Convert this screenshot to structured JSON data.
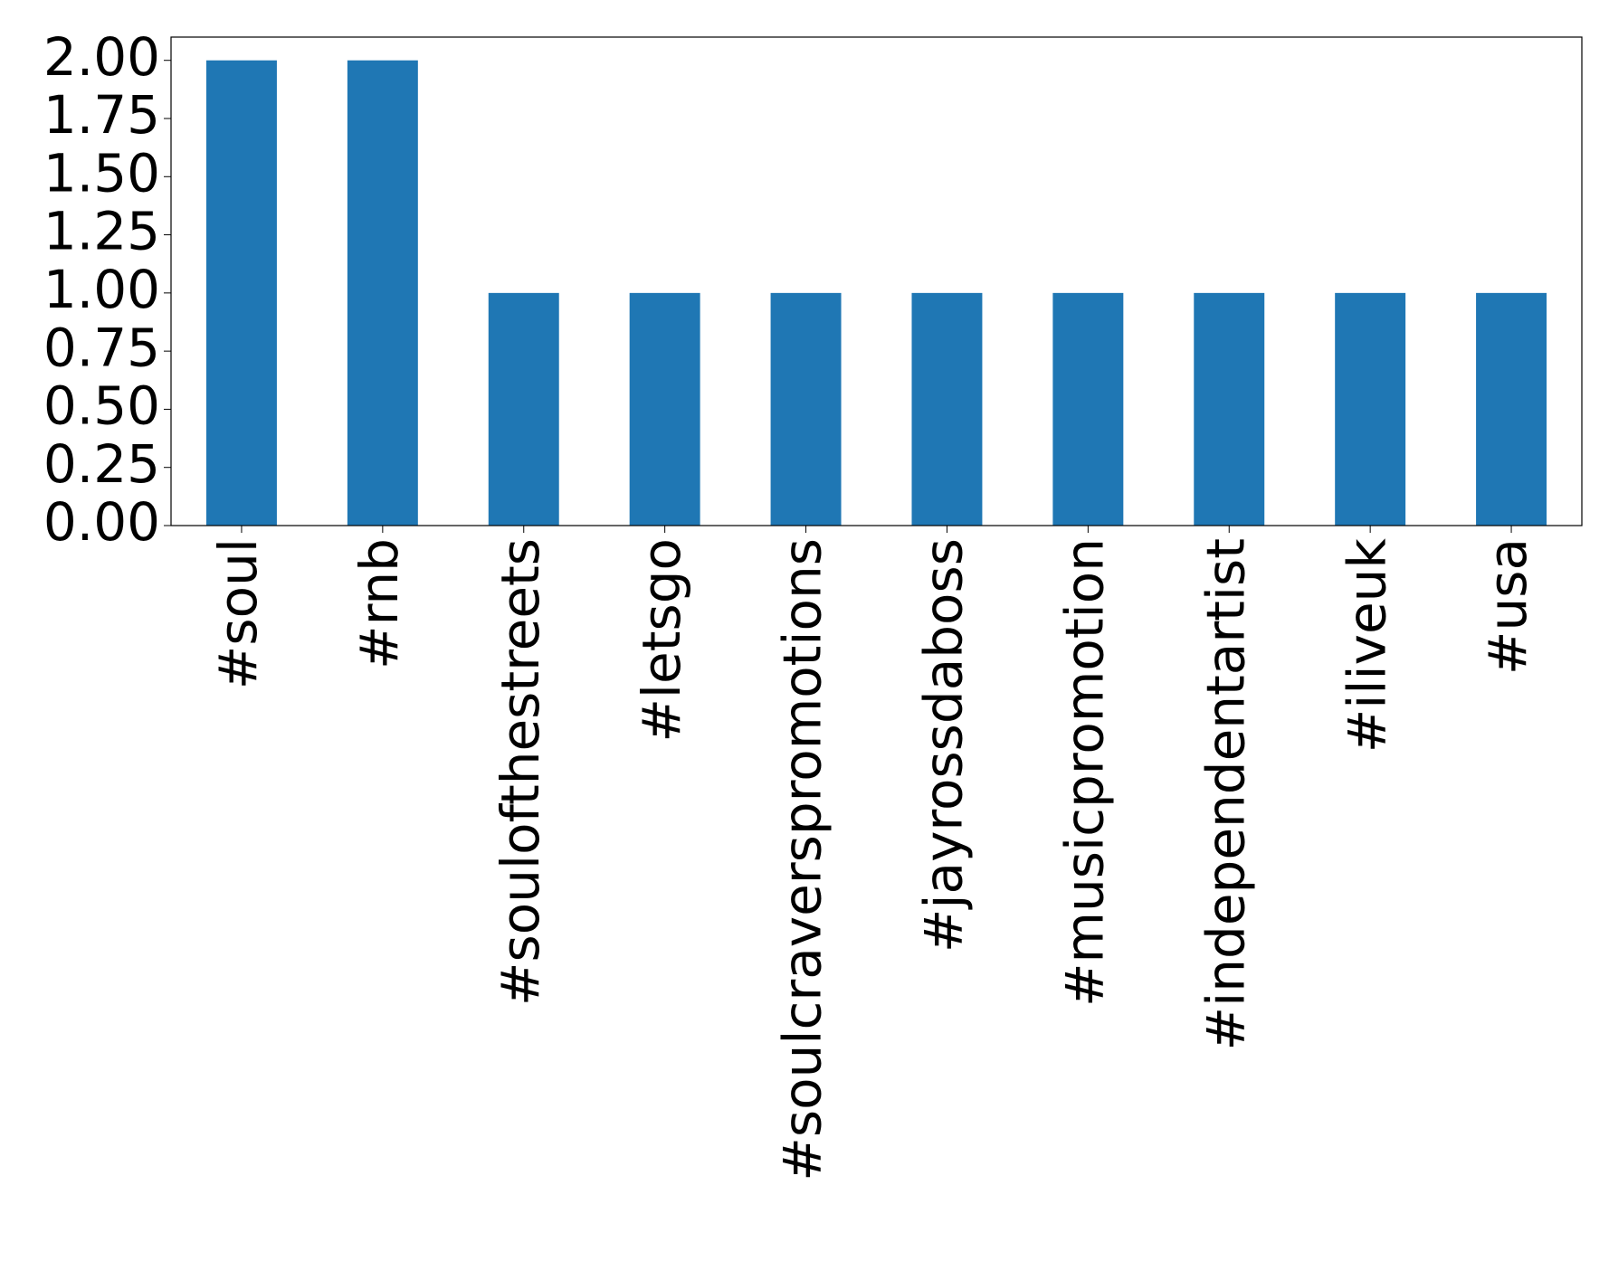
{
  "chart_data": {
    "type": "bar",
    "categories": [
      "#soul",
      "#rnb",
      "#soulofthestreets",
      "#letsgo",
      "#soulcraverspromotions",
      "#jayrossdaboss",
      "#musicpromotion",
      "#independentartist",
      "#iliveuk",
      "#usa"
    ],
    "values": [
      2,
      2,
      1,
      1,
      1,
      1,
      1,
      1,
      1,
      1
    ],
    "color": "#1f77b4",
    "ylim": [
      0,
      2.1
    ],
    "yticks": [
      {
        "value": 0,
        "label": "0.00"
      },
      {
        "value": 0.25,
        "label": "0.25"
      },
      {
        "value": 0.5,
        "label": "0.50"
      },
      {
        "value": 0.75,
        "label": "0.75"
      },
      {
        "value": 1,
        "label": "1.00"
      },
      {
        "value": 1.25,
        "label": "1.25"
      },
      {
        "value": 1.5,
        "label": "1.50"
      },
      {
        "value": 1.75,
        "label": "1.75"
      },
      {
        "value": 2,
        "label": "2.00"
      }
    ],
    "grid": false
  }
}
